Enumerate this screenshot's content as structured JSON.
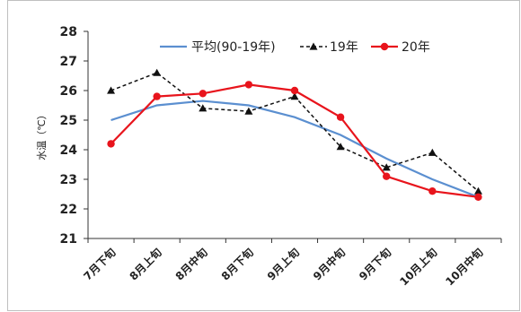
{
  "chart_data": {
    "type": "line",
    "ylabel": "水温（℃）",
    "ylim": [
      21,
      28
    ],
    "yticks": [
      21,
      22,
      23,
      24,
      25,
      26,
      27,
      28
    ],
    "categories": [
      "7月下旬",
      "8月上旬",
      "8月中旬",
      "8月下旬",
      "9月上旬",
      "9月中旬",
      "9月下旬",
      "10月上旬",
      "10月中旬"
    ],
    "legend_position": "top",
    "grid": false,
    "series": [
      {
        "name": "平均(90-19年)",
        "color": "#5b8fd0",
        "style": "solid",
        "marker": "none",
        "values": [
          25.0,
          25.5,
          25.65,
          25.5,
          25.1,
          24.5,
          23.7,
          23.0,
          22.4
        ]
      },
      {
        "name": "19年",
        "color": "#111111",
        "style": "dashed",
        "marker": "triangle",
        "values": [
          26.0,
          26.6,
          25.4,
          25.3,
          25.8,
          24.1,
          23.4,
          23.9,
          22.6
        ]
      },
      {
        "name": "20年",
        "color": "#e8141c",
        "style": "solid",
        "marker": "circle",
        "values": [
          24.2,
          25.8,
          25.9,
          26.2,
          26.0,
          25.1,
          23.1,
          22.6,
          22.4
        ]
      }
    ]
  }
}
